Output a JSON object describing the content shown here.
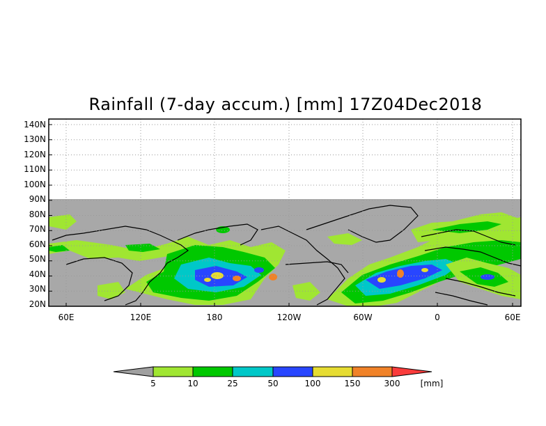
{
  "title": "Rainfall (7-day accum.) [mm] 17Z04Dec2018",
  "lat_labels": [
    "140N",
    "130N",
    "120N",
    "110N",
    "100N",
    "90N",
    "80N",
    "70N",
    "60N",
    "50N",
    "40N",
    "30N",
    "20N"
  ],
  "lon_labels": [
    "60E",
    "120E",
    "180",
    "120W",
    "60W",
    "0",
    "60E"
  ],
  "colorbar": {
    "unit": "[mm]",
    "thresholds": [
      "5",
      "10",
      "25",
      "50",
      "100",
      "150",
      "300"
    ],
    "colors": [
      "#a0a0a0",
      "#a0e632",
      "#00c800",
      "#00c8c8",
      "#2846ff",
      "#e6dc32",
      "#f08228",
      "#fa3c3c"
    ]
  },
  "colors": {
    "no_data": "#a8a8a8",
    "grid": "#9a9a9a",
    "coastline": "#000000"
  }
}
